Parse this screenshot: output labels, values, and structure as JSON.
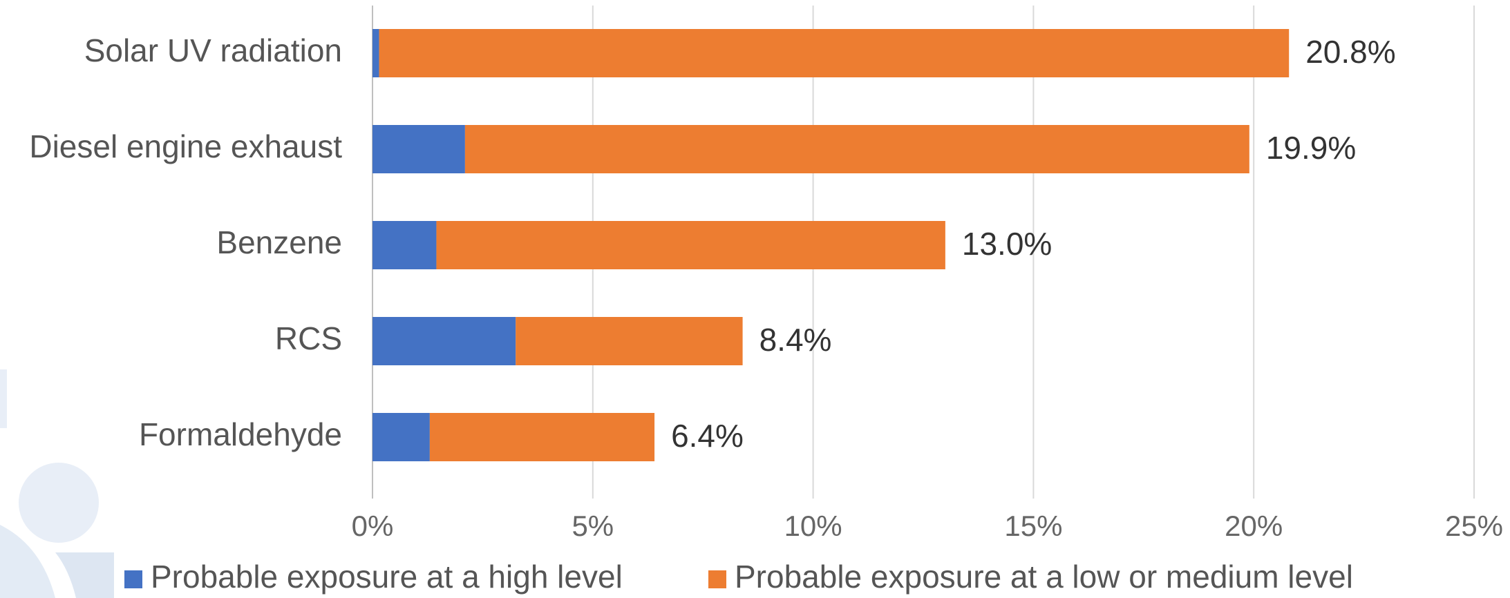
{
  "chart_data": {
    "type": "bar",
    "orientation": "horizontal",
    "stacked": true,
    "categories": [
      "Solar UV radiation",
      "Diesel engine exhaust",
      "Benzene",
      "RCS",
      "Formaldehyde"
    ],
    "series": [
      {
        "name": "Probable exposure at a high level",
        "color": "#4472C4",
        "values": [
          0.15,
          2.1,
          1.45,
          3.25,
          1.3
        ]
      },
      {
        "name": "Probable exposure at a low or medium level",
        "color": "#ED7D31",
        "values": [
          20.65,
          17.8,
          11.55,
          5.15,
          5.1
        ]
      }
    ],
    "totals": [
      20.8,
      19.9,
      13.0,
      8.4,
      6.4
    ],
    "total_labels": [
      "20.8%",
      "19.9%",
      "13.0%",
      "8.4%",
      "6.4%"
    ],
    "x_ticks": [
      0,
      5,
      10,
      15,
      20,
      25
    ],
    "x_tick_labels": [
      "0%",
      "5%",
      "10%",
      "15%",
      "20%",
      "25%"
    ],
    "xlim": [
      0,
      25
    ],
    "grid": "vertical",
    "legend_position": "bottom"
  }
}
